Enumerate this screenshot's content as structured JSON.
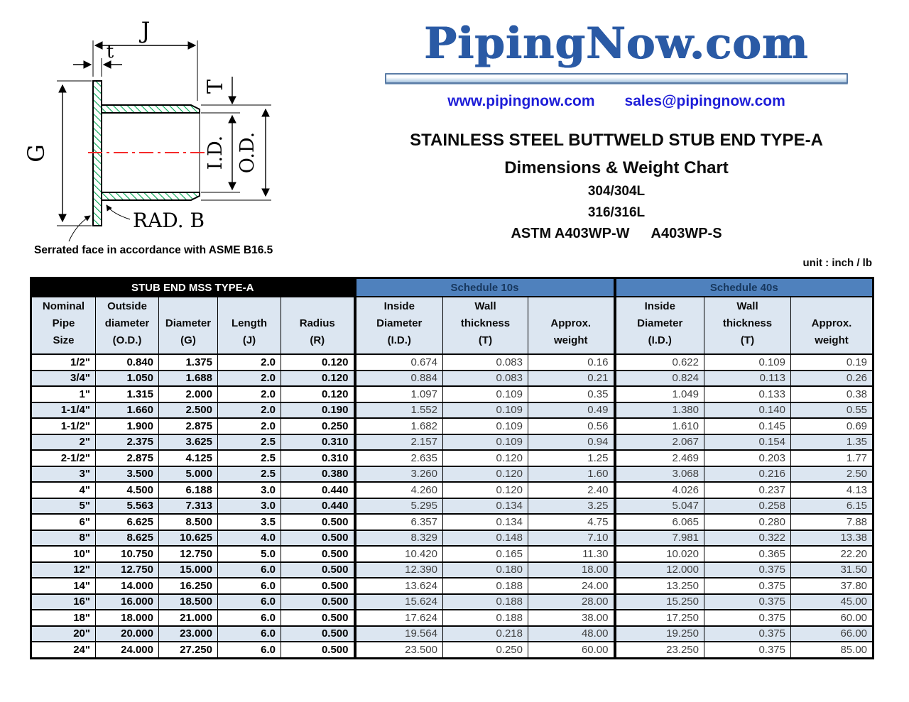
{
  "logo": {
    "name": "PipingNow.com",
    "website": "www.pipingnow.com",
    "email": "sales@pipingnow.com"
  },
  "heading": {
    "title": "STAINLESS STEEL BUTTWELD STUB END TYPE-A",
    "subtitle": "Dimensions & Weight Chart",
    "grade1": "304/304L",
    "grade2": "316/316L",
    "spec_w": "ASTM A403WP-W",
    "spec_s": "A403WP-S",
    "unit_label": "unit : inch / lb"
  },
  "diagram": {
    "labels": {
      "length_j": "J",
      "lap_thickness_t": "t",
      "wall_thickness_T": "T",
      "inside_diameter": "I.D.",
      "outside_diameter": "O.D.",
      "flange_diameter_g": "G",
      "radius_callout": "RAD. B",
      "serrated_note": "Serrated face in accordance with ASME B16.5"
    }
  },
  "colors": {
    "logo-blue": "#2a5aa5",
    "link-blue": "#1d1dd8",
    "band-blue": "#4f81bd",
    "band-text": "#17375d",
    "header-fill": "#dce6f1",
    "stripe": "#dce6f1",
    "schedule-text": "#3f3f3f",
    "hatch-green": "#00a651",
    "centerline-red": "#f52a2a"
  },
  "table": {
    "group_headers": [
      {
        "label": "STUB END MSS TYPE-A",
        "span": 5
      },
      {
        "label": "Schedule 10s",
        "span": 3
      },
      {
        "label": "Schedule 40s",
        "span": 3
      }
    ],
    "columns": [
      {
        "lines": [
          "Nominal",
          "Pipe",
          "Size"
        ]
      },
      {
        "lines": [
          "Outside",
          "diameter",
          "(O.D.)"
        ]
      },
      {
        "lines": [
          "Diameter",
          "(G)"
        ]
      },
      {
        "lines": [
          "Length",
          "(J)"
        ]
      },
      {
        "lines": [
          "Radius",
          "(R)"
        ]
      },
      {
        "lines": [
          "Inside",
          "Diameter",
          "(I.D.)"
        ]
      },
      {
        "lines": [
          "Wall",
          "thickness",
          "(T)"
        ]
      },
      {
        "lines": [
          "Approx.",
          "weight"
        ]
      },
      {
        "lines": [
          "Inside",
          "Diameter",
          "(I.D.)"
        ]
      },
      {
        "lines": [
          "Wall",
          "thickness",
          "(T)"
        ]
      },
      {
        "lines": [
          "Approx.",
          "weight"
        ]
      }
    ],
    "rows": [
      [
        "1/2\"",
        "0.840",
        "1.375",
        "2.0",
        "0.120",
        "0.674",
        "0.083",
        "0.16",
        "0.622",
        "0.109",
        "0.19"
      ],
      [
        "3/4\"",
        "1.050",
        "1.688",
        "2.0",
        "0.120",
        "0.884",
        "0.083",
        "0.21",
        "0.824",
        "0.113",
        "0.26"
      ],
      [
        "1\"",
        "1.315",
        "2.000",
        "2.0",
        "0.120",
        "1.097",
        "0.109",
        "0.35",
        "1.049",
        "0.133",
        "0.38"
      ],
      [
        "1-1/4\"",
        "1.660",
        "2.500",
        "2.0",
        "0.190",
        "1.552",
        "0.109",
        "0.49",
        "1.380",
        "0.140",
        "0.55"
      ],
      [
        "1-1/2\"",
        "1.900",
        "2.875",
        "2.0",
        "0.250",
        "1.682",
        "0.109",
        "0.56",
        "1.610",
        "0.145",
        "0.69"
      ],
      [
        "2\"",
        "2.375",
        "3.625",
        "2.5",
        "0.310",
        "2.157",
        "0.109",
        "0.94",
        "2.067",
        "0.154",
        "1.35"
      ],
      [
        "2-1/2\"",
        "2.875",
        "4.125",
        "2.5",
        "0.310",
        "2.635",
        "0.120",
        "1.25",
        "2.469",
        "0.203",
        "1.77"
      ],
      [
        "3\"",
        "3.500",
        "5.000",
        "2.5",
        "0.380",
        "3.260",
        "0.120",
        "1.60",
        "3.068",
        "0.216",
        "2.50"
      ],
      [
        "4\"",
        "4.500",
        "6.188",
        "3.0",
        "0.440",
        "4.260",
        "0.120",
        "2.40",
        "4.026",
        "0.237",
        "4.13"
      ],
      [
        "5\"",
        "5.563",
        "7.313",
        "3.0",
        "0.440",
        "5.295",
        "0.134",
        "3.25",
        "5.047",
        "0.258",
        "6.15"
      ],
      [
        "6\"",
        "6.625",
        "8.500",
        "3.5",
        "0.500",
        "6.357",
        "0.134",
        "4.75",
        "6.065",
        "0.280",
        "7.88"
      ],
      [
        "8\"",
        "8.625",
        "10.625",
        "4.0",
        "0.500",
        "8.329",
        "0.148",
        "7.10",
        "7.981",
        "0.322",
        "13.38"
      ],
      [
        "10\"",
        "10.750",
        "12.750",
        "5.0",
        "0.500",
        "10.420",
        "0.165",
        "11.30",
        "10.020",
        "0.365",
        "22.20"
      ],
      [
        "12\"",
        "12.750",
        "15.000",
        "6.0",
        "0.500",
        "12.390",
        "0.180",
        "18.00",
        "12.000",
        "0.375",
        "31.50"
      ],
      [
        "14\"",
        "14.000",
        "16.250",
        "6.0",
        "0.500",
        "13.624",
        "0.188",
        "24.00",
        "13.250",
        "0.375",
        "37.80"
      ],
      [
        "16\"",
        "16.000",
        "18.500",
        "6.0",
        "0.500",
        "15.624",
        "0.188",
        "28.00",
        "15.250",
        "0.375",
        "45.00"
      ],
      [
        "18\"",
        "18.000",
        "21.000",
        "6.0",
        "0.500",
        "17.624",
        "0.188",
        "38.00",
        "17.250",
        "0.375",
        "60.00"
      ],
      [
        "20\"",
        "20.000",
        "23.000",
        "6.0",
        "0.500",
        "19.564",
        "0.218",
        "48.00",
        "19.250",
        "0.375",
        "66.00"
      ],
      [
        "24\"",
        "24.000",
        "27.250",
        "6.0",
        "0.500",
        "23.500",
        "0.250",
        "60.00",
        "23.250",
        "0.375",
        "85.00"
      ]
    ]
  }
}
